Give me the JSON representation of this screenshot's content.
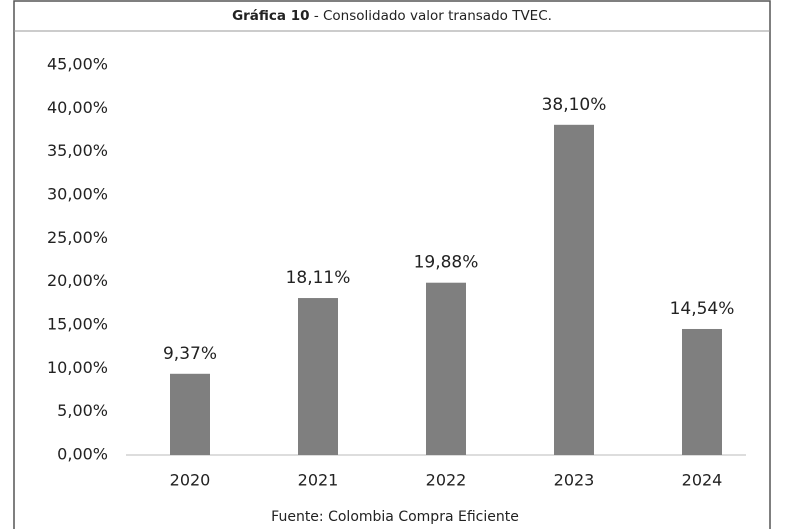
{
  "chart_data": {
    "type": "bar",
    "title_parts": [
      "Gráfica 10",
      " - Consolidado valor transado TVEC."
    ],
    "source": "Fuente: Colombia Compra Eficiente",
    "categories": [
      "2020",
      "2021",
      "2022",
      "2023",
      "2024"
    ],
    "values": [
      9.37,
      18.11,
      19.88,
      38.1,
      14.54
    ],
    "value_labels": [
      "9,37%",
      "18,11%",
      "19,88%",
      "38,10%",
      "14,54%"
    ],
    "color": "#7f7f7f",
    "ylim": [
      0,
      45
    ],
    "yticks": [
      {
        "value": 0,
        "label": "0,00%"
      },
      {
        "value": 5,
        "label": "5,00%"
      },
      {
        "value": 10,
        "label": "10,00%"
      },
      {
        "value": 15,
        "label": "15,00%"
      },
      {
        "value": 20,
        "label": "20,00%"
      },
      {
        "value": 25,
        "label": "25,00%"
      },
      {
        "value": 30,
        "label": "30,00%"
      },
      {
        "value": 35,
        "label": "35,00%"
      },
      {
        "value": 40,
        "label": "40,00%"
      },
      {
        "value": 45,
        "label": "45,00%"
      }
    ],
    "grid": false
  }
}
